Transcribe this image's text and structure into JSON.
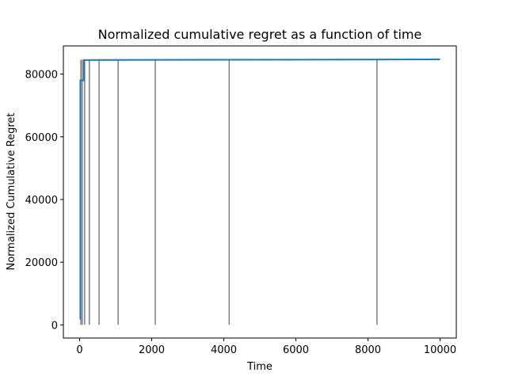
{
  "chart_data": {
    "type": "line",
    "title": "Normalized cumulative regret as a function of time",
    "xlabel": "Time",
    "ylabel": "Normalized Cumulative Regret",
    "xlim": [
      -450,
      10450
    ],
    "ylim": [
      -4200,
      89000
    ],
    "xticks": [
      0,
      2000,
      4000,
      6000,
      8000,
      10000
    ],
    "yticks": [
      0,
      20000,
      40000,
      60000,
      80000
    ],
    "xtick_labels": [
      "0",
      "2000",
      "4000",
      "6000",
      "8000",
      "10000"
    ],
    "ytick_labels": [
      "0",
      "20000",
      "40000",
      "60000",
      "80000"
    ],
    "grid": false,
    "series": [
      {
        "color": "#1f77b4",
        "x": [
          0,
          20,
          20,
          120,
          120,
          10000
        ],
        "y": [
          2000,
          2000,
          78000,
          78000,
          84500,
          84700
        ]
      }
    ],
    "vertical_lines": {
      "color": "#808080",
      "x": [
        35,
        75,
        140,
        270,
        540,
        1070,
        2100,
        4150,
        8250
      ],
      "y_range": [
        0,
        84600
      ]
    }
  }
}
